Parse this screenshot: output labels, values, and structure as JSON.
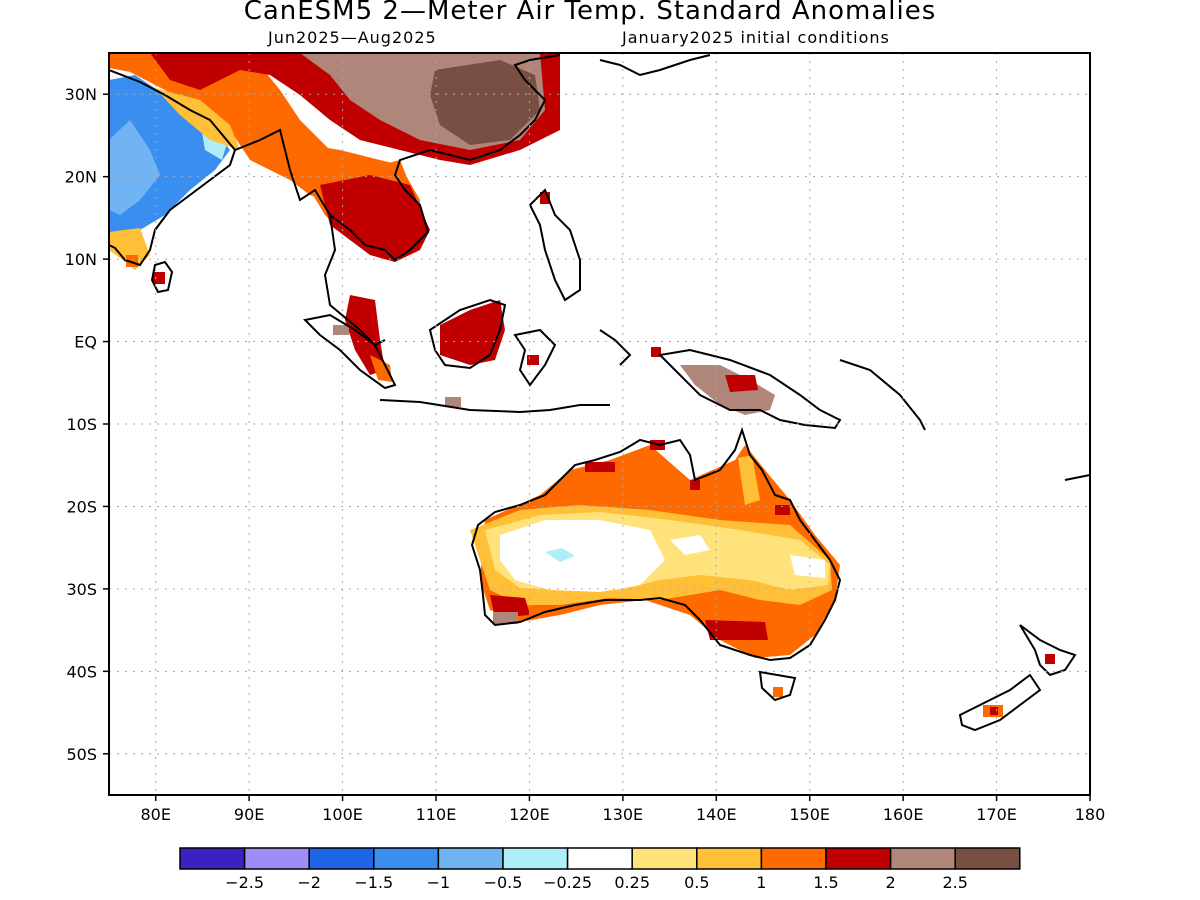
{
  "title": "CanESM5 2—Meter Air Temp. Standard Anomalies",
  "subtitle_left": "Jun2025—Aug2025",
  "subtitle_right": "January2025 initial conditions",
  "axes": {
    "lat_labels": [
      "30N",
      "20N",
      "10N",
      "EQ",
      "10S",
      "20S",
      "30S",
      "40S",
      "50S"
    ],
    "lon_labels": [
      "80E",
      "90E",
      "100E",
      "110E",
      "120E",
      "130E",
      "140E",
      "150E",
      "160E",
      "170E",
      "180"
    ],
    "lon_range": [
      75,
      180
    ],
    "lat_range": [
      -55,
      35
    ],
    "grid": "dotted"
  },
  "colorbar": {
    "colors": [
      "#3b21c0",
      "#9d8ef5",
      "#1f65e8",
      "#3a8ef0",
      "#70b4f4",
      "#aeeef8",
      "#ffffff",
      "#ffe27a",
      "#ffbf36",
      "#ff6a00",
      "#c00000",
      "#b0857a",
      "#7a4f43"
    ],
    "labels": [
      "−2.5",
      "−2",
      "−1.5",
      "−1",
      "−0.5",
      "−0.25",
      "0.25",
      "0.5",
      "1",
      "1.5",
      "2",
      "2.5"
    ]
  },
  "regions": [
    {
      "name": "india-cool",
      "value": -1,
      "color": "#3a8ef0"
    },
    {
      "name": "china-warm",
      "value": 2.5,
      "color": "#7a4f43"
    },
    {
      "name": "indochina-warm",
      "value": 2,
      "color": "#c00000"
    },
    {
      "name": "australia-interior",
      "value": 0.25,
      "color": "#ffffff"
    },
    {
      "name": "australia-margin",
      "value": 1,
      "color": "#ffbf36"
    },
    {
      "name": "new-guinea",
      "value": 2.5,
      "color": "#b0857a"
    }
  ]
}
